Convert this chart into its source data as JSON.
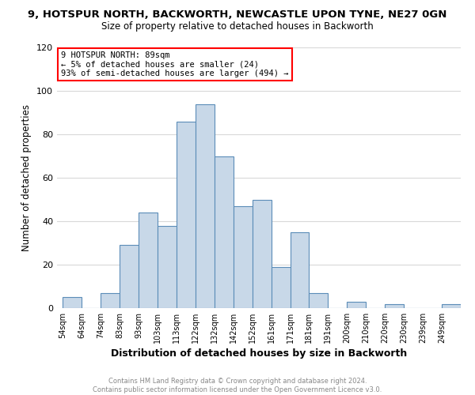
{
  "title": "9, HOTSPUR NORTH, BACKWORTH, NEWCASTLE UPON TYNE, NE27 0GN",
  "subtitle": "Size of property relative to detached houses in Backworth",
  "xlabel": "Distribution of detached houses by size in Backworth",
  "ylabel": "Number of detached properties",
  "footer_line1": "Contains HM Land Registry data © Crown copyright and database right 2024.",
  "footer_line2": "Contains public sector information licensed under the Open Government Licence v3.0.",
  "bar_labels": [
    "54sqm",
    "64sqm",
    "74sqm",
    "83sqm",
    "93sqm",
    "103sqm",
    "113sqm",
    "122sqm",
    "132sqm",
    "142sqm",
    "152sqm",
    "161sqm",
    "171sqm",
    "181sqm",
    "191sqm",
    "200sqm",
    "210sqm",
    "220sqm",
    "230sqm",
    "239sqm",
    "249sqm"
  ],
  "bar_values": [
    5,
    0,
    7,
    29,
    44,
    38,
    86,
    94,
    70,
    47,
    50,
    19,
    35,
    7,
    0,
    3,
    0,
    2,
    0,
    0,
    2
  ],
  "bar_color": "#c8d8e8",
  "bar_edge_color": "#5b8db8",
  "annotation_title": "9 HOTSPUR NORTH: 89sqm",
  "annotation_line2": "← 5% of detached houses are smaller (24)",
  "annotation_line3": "93% of semi-detached houses are larger (494) →",
  "annotation_box_color": "white",
  "annotation_box_edge_color": "red",
  "ylim": [
    0,
    120
  ],
  "yticks": [
    0,
    20,
    40,
    60,
    80,
    100,
    120
  ],
  "background_color": "#ffffff",
  "grid_color": "#d8d8d8"
}
